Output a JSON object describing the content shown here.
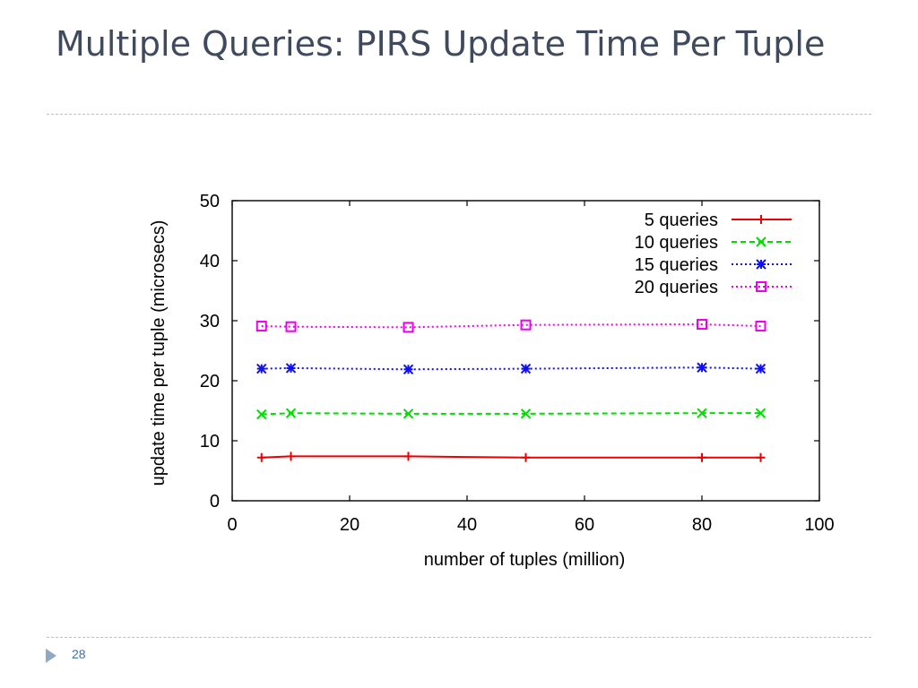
{
  "slide": {
    "title": "Multiple Queries: PIRS Update Time Per Tuple",
    "page_number": "28"
  },
  "chart_data": {
    "type": "line",
    "title": "",
    "xlabel": "number of tuples (million)",
    "ylabel": "update time per tuple (microsecs)",
    "xlim": [
      0,
      100
    ],
    "ylim": [
      0,
      50
    ],
    "x_ticks": [
      0,
      20,
      40,
      60,
      80,
      100
    ],
    "y_ticks": [
      0,
      10,
      20,
      30,
      40,
      50
    ],
    "grid": false,
    "legend_position": "top-right",
    "x": [
      5,
      10,
      30,
      50,
      80,
      90
    ],
    "series": [
      {
        "name": "5 queries",
        "color": "#ee0000",
        "marker": "plus",
        "dash": "solid",
        "values": [
          7.2,
          7.4,
          7.4,
          7.2,
          7.2,
          7.2
        ]
      },
      {
        "name": "10 queries",
        "color": "#00dd00",
        "marker": "cross",
        "dash": "dashed",
        "values": [
          14.4,
          14.6,
          14.5,
          14.5,
          14.6,
          14.6
        ]
      },
      {
        "name": "15 queries",
        "color": "#1010ee",
        "marker": "star",
        "dash": "dotted",
        "values": [
          22.0,
          22.1,
          21.9,
          22.0,
          22.2,
          22.0
        ]
      },
      {
        "name": "20 queries",
        "color": "#ee00ee",
        "marker": "square",
        "dash": "dotted",
        "values": [
          29.1,
          29.0,
          28.9,
          29.3,
          29.4,
          29.1
        ]
      }
    ]
  }
}
